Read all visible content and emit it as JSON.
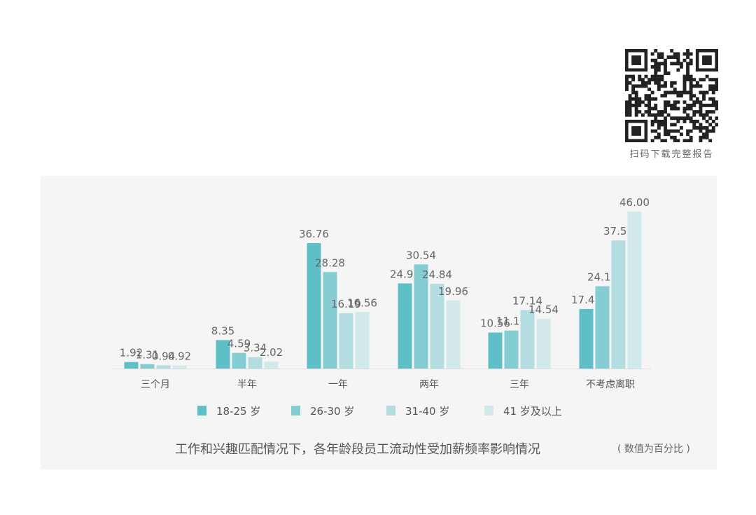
{
  "qr": {
    "caption": "扫码下载完整报告"
  },
  "footer": {
    "title": "工作和兴趣匹配情况下，各年龄段员工流动性受加薪频率影响情况",
    "note": "( 数值为百分比 )"
  },
  "chart_data": {
    "type": "bar",
    "title": "工作和兴趣匹配情况下，各年龄段员工流动性受加薪频率影响情况",
    "xlabel": "",
    "ylabel": "",
    "unit_note": "( 数值为百分比 )",
    "ylim": [
      0,
      50
    ],
    "grid": false,
    "legend_position": "bottom",
    "categories": [
      "三个月",
      "半年",
      "一年",
      "两年",
      "三年",
      "不考虑离职"
    ],
    "series": [
      {
        "name": "18-25 岁",
        "color": "#5fbfc6",
        "values": [
          1.92,
          8.35,
          36.76,
          24.95,
          10.56,
          17.47
        ]
      },
      {
        "name": "26-30 岁",
        "color": "#85cdd2",
        "values": [
          1.31,
          4.59,
          28.28,
          30.54,
          11.15,
          24.13
        ]
      },
      {
        "name": "31-40 岁",
        "color": "#b3dde1",
        "values": [
          0.94,
          3.34,
          16.19,
          24.84,
          17.14,
          37.55
        ]
      },
      {
        "name": "41 岁及以上",
        "color": "#d2e9ec",
        "values": [
          0.92,
          2.02,
          16.56,
          19.96,
          14.54,
          46.0
        ]
      }
    ],
    "labels": [
      [
        "1.92",
        "8.35",
        "36.76",
        "24.95",
        "10.56",
        "17.47"
      ],
      [
        "1.31",
        "4.59",
        "28.28",
        "30.54",
        "11.15",
        "24.13"
      ],
      [
        "0.94",
        "3.34",
        "16.19",
        "24.84",
        "17.14",
        "37.55"
      ],
      [
        "0.92",
        "2.02",
        "16.56",
        "19.96",
        "14.54",
        "46.00"
      ]
    ]
  }
}
